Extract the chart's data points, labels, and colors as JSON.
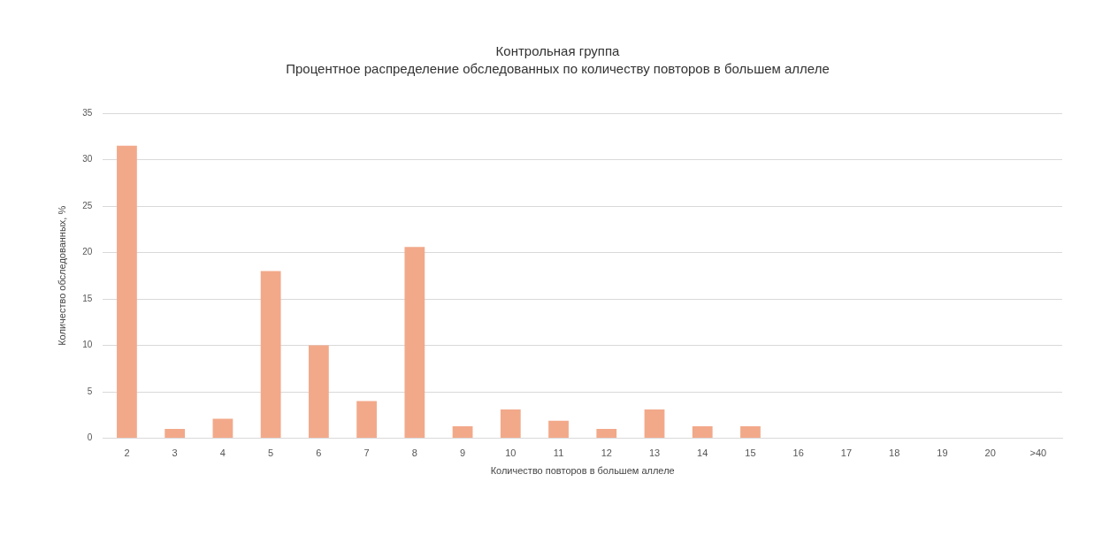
{
  "chart_data": {
    "type": "bar",
    "title": "Контрольная группа",
    "subtitle": "Процентное распределение обследованных по количеству повторов в большем аллеле",
    "xlabel": "Количество повторов в большем аллеле",
    "ylabel": "Количество обследованных, %",
    "categories": [
      "2",
      "3",
      "4",
      "5",
      "6",
      "7",
      "8",
      "9",
      "10",
      "11",
      "12",
      "13",
      "14",
      "15",
      "16",
      "17",
      "18",
      "19",
      "20",
      ">40"
    ],
    "values": [
      31.5,
      1,
      2.1,
      18,
      10,
      4,
      20.6,
      1.3,
      3.1,
      1.9,
      1,
      3.1,
      1.3,
      1.3,
      0,
      0,
      0,
      0,
      0,
      0
    ],
    "color": "#f2a98a",
    "ylim": [
      0,
      35
    ],
    "yticks": [
      0,
      5,
      10,
      15,
      20,
      25,
      30,
      35
    ],
    "grid": "y",
    "legend": false
  }
}
